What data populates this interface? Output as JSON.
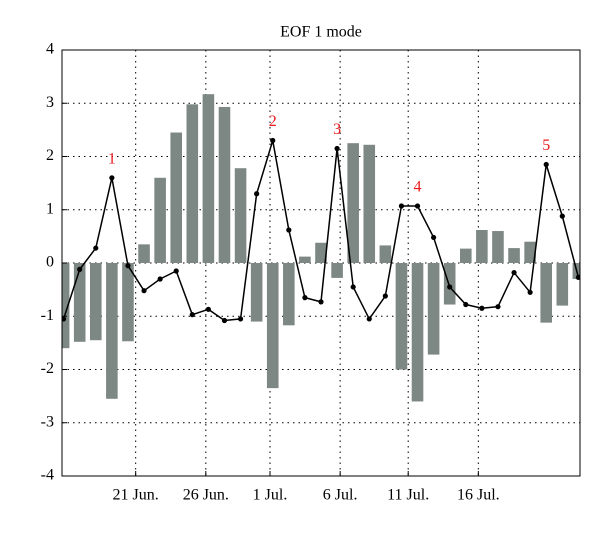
{
  "chart_data": {
    "type": "bar",
    "title": "EOF 1 mode",
    "x": [
      0,
      1,
      2,
      3,
      4,
      5,
      6,
      7,
      8,
      9,
      10,
      11,
      12,
      13,
      14,
      15,
      16,
      17,
      18,
      19,
      20,
      21,
      22,
      23,
      24,
      25,
      26,
      27,
      28,
      29,
      30,
      31,
      32
    ],
    "series": [
      {
        "name": "bars",
        "type": "bar",
        "color": "#7d8783",
        "values": [
          -1.6,
          -1.48,
          -1.45,
          -2.55,
          -1.47,
          0.35,
          1.6,
          2.45,
          2.98,
          3.17,
          2.93,
          1.78,
          -1.1,
          -2.35,
          -1.17,
          0.12,
          0.38,
          -0.28,
          2.25,
          2.22,
          0.33,
          -2.0,
          -2.6,
          -1.72,
          -0.78,
          0.27,
          0.62,
          0.6,
          0.28,
          0.4,
          -1.12,
          -0.8,
          -0.3
        ]
      },
      {
        "name": "line",
        "type": "line",
        "color": "#000000",
        "values": [
          -1.05,
          -0.12,
          0.28,
          1.6,
          -0.05,
          -0.52,
          -0.3,
          -0.15,
          -0.97,
          -0.87,
          -1.08,
          -1.05,
          1.3,
          2.3,
          0.62,
          -0.65,
          -0.73,
          2.15,
          -0.45,
          -1.05,
          -0.62,
          1.07,
          1.07,
          0.48,
          -0.45,
          -0.78,
          -0.85,
          -0.82,
          -0.18,
          -0.55,
          1.85,
          0.88,
          -0.27
        ]
      }
    ],
    "annotations": [
      {
        "text": "1",
        "x": 3,
        "y": 1.6
      },
      {
        "text": "2",
        "x": 13,
        "y": 2.3
      },
      {
        "text": "3",
        "x": 17,
        "y": 2.15
      },
      {
        "text": "4",
        "x": 22,
        "y": 1.07
      },
      {
        "text": "5",
        "x": 30,
        "y": 1.85
      }
    ],
    "annotation_color": "#e8191c",
    "xlim": [
      -0.1,
      32.1
    ],
    "xticks": [
      {
        "value": 4.48,
        "label": "21 Jun."
      },
      {
        "value": 8.84,
        "label": "26 Jun."
      },
      {
        "value": 12.83,
        "label": "1 Jul."
      },
      {
        "value": 17.19,
        "label": "6 Jul."
      },
      {
        "value": 21.42,
        "label": "11 Jul."
      },
      {
        "value": 25.78,
        "label": "16 Jul."
      }
    ],
    "ylim": [
      -4,
      4
    ],
    "yticks": [
      -4,
      -3,
      -2,
      -1,
      0,
      1,
      2,
      3,
      4
    ],
    "grid": true
  }
}
